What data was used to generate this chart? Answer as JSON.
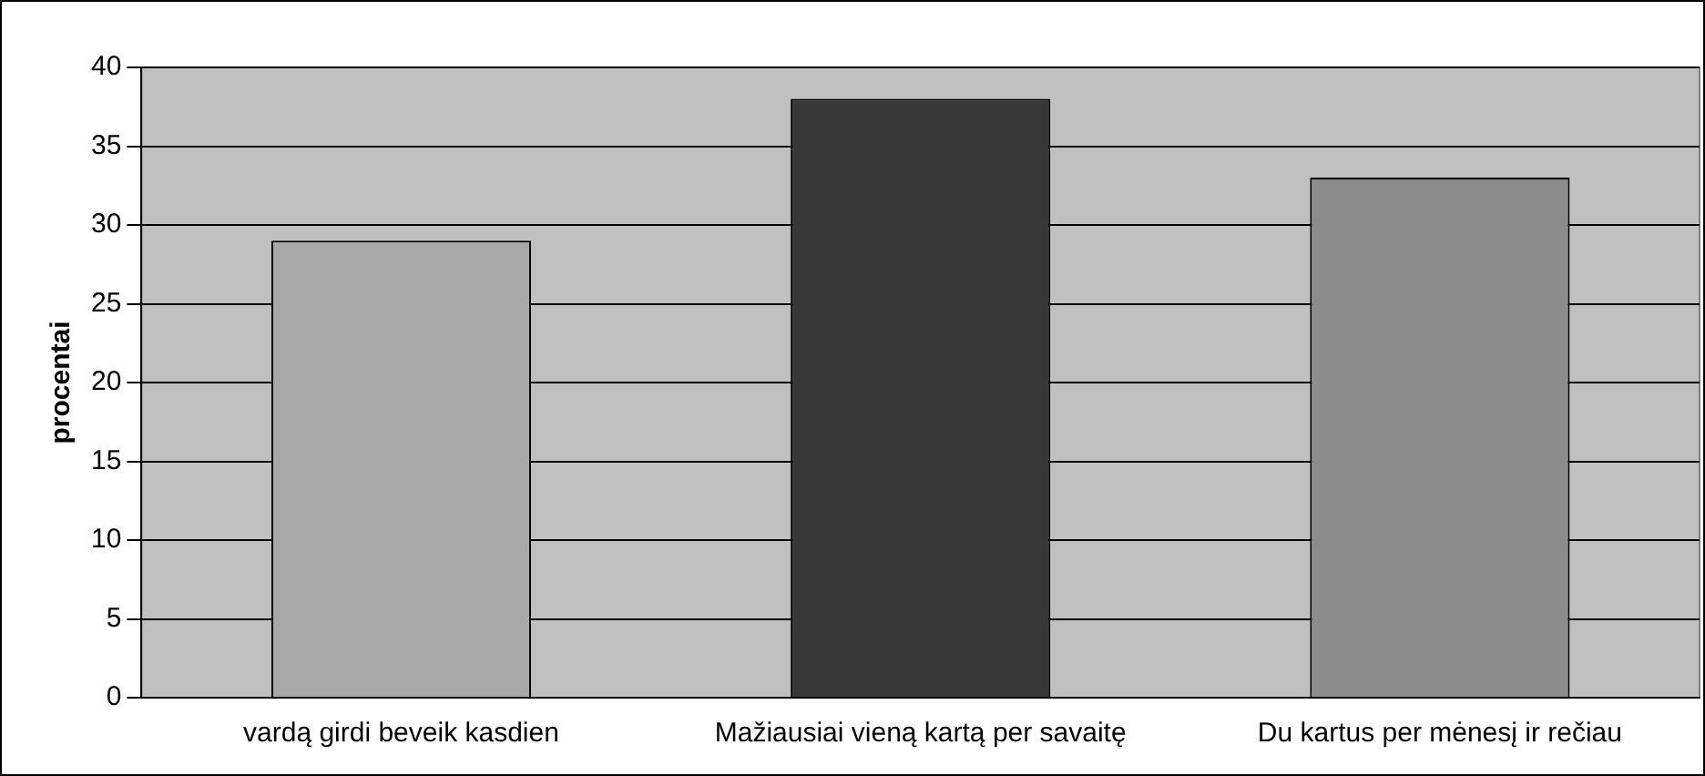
{
  "chart_data": {
    "type": "bar",
    "ylabel": "procentai",
    "categories": [
      "vardą girdi beveik kasdien",
      "Mažiausiai vieną kartą per savaitę",
      "Du kartus per mėnesį ir rečiau"
    ],
    "values": [
      29,
      38,
      33
    ],
    "colors": [
      "#a8a8a8",
      "#383838",
      "#8c8c8c"
    ],
    "ylim": [
      0,
      40
    ],
    "yticks": [
      0,
      5,
      10,
      15,
      20,
      25,
      30,
      35,
      40
    ],
    "grid": "y"
  }
}
